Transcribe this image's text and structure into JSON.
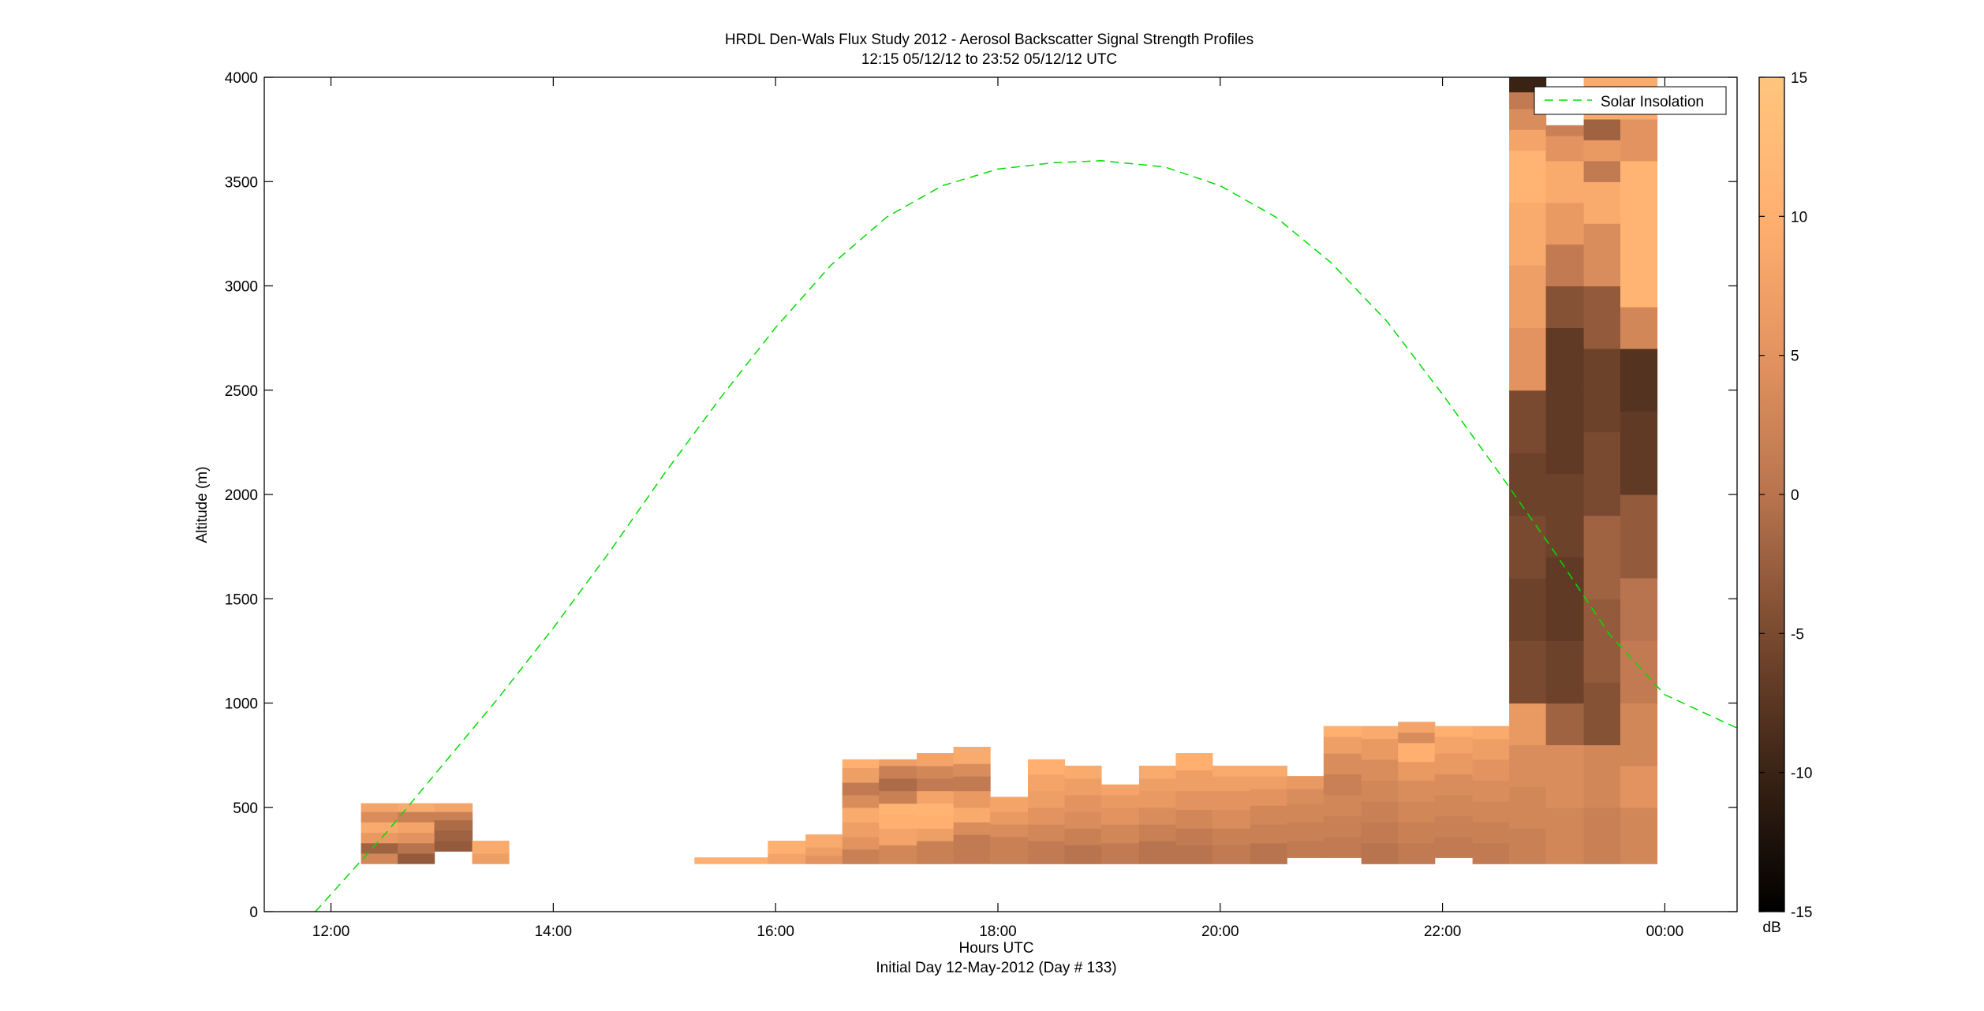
{
  "figure": {
    "title_line1": "HRDL Den-Wals Flux Study 2012 - Aerosol Backscatter Signal Strength Profiles",
    "title_line2": "12:15 05/12/12 to 23:52 05/12/12  UTC",
    "xlabel": "Hours UTC",
    "xlabel_line2": "Initial Day 12-May-2012 (Day # 133)",
    "ylabel": "Altitude (m)",
    "legend_entry": "Solar Insolation",
    "colorbar_unit": "dB"
  },
  "chart_data": {
    "type": "heatmap",
    "x_unit": "hours UTC (24.0 = 00:00 next day)",
    "xlim": [
      11.4,
      24.65
    ],
    "ylim": [
      0,
      4000
    ],
    "x_ticks": [
      12,
      14,
      16,
      18,
      20,
      22,
      24
    ],
    "x_tick_labels": [
      "12:00",
      "14:00",
      "16:00",
      "18:00",
      "20:00",
      "22:00",
      "00:00"
    ],
    "y_ticks": [
      0,
      500,
      1000,
      1500,
      2000,
      2500,
      3000,
      3500,
      4000
    ],
    "y_tick_labels": [
      "0",
      "500",
      "1000",
      "1500",
      "2000",
      "2500",
      "3000",
      "3500",
      "4000"
    ],
    "colorbar": {
      "clim": [
        -15,
        15
      ],
      "ticks": [
        -15,
        -10,
        -5,
        0,
        5,
        10,
        15
      ],
      "tick_labels": [
        "-15",
        "-10",
        "-5",
        "0",
        "5",
        "10",
        "15"
      ],
      "colormap": "copper-like",
      "color_stops": [
        "#000000",
        "#3a2315",
        "#7a4a30",
        "#b8744e",
        "#e3935f",
        "#ffb070",
        "#ffc57d"
      ]
    },
    "columns": [
      {
        "x0": 12.27,
        "x1": 12.6,
        "cells": [
          [
            230,
            280,
            3
          ],
          [
            280,
            330,
            -2
          ],
          [
            330,
            380,
            6
          ],
          [
            380,
            430,
            9
          ],
          [
            430,
            480,
            4
          ],
          [
            480,
            520,
            8
          ]
        ]
      },
      {
        "x0": 12.6,
        "x1": 12.93,
        "cells": [
          [
            230,
            280,
            -3
          ],
          [
            280,
            330,
            0
          ],
          [
            330,
            380,
            5
          ],
          [
            380,
            430,
            8
          ],
          [
            430,
            480,
            2
          ],
          [
            480,
            520,
            9
          ]
        ]
      },
      {
        "x0": 12.93,
        "x1": 13.27,
        "cells": [
          [
            290,
            340,
            -3
          ],
          [
            340,
            390,
            -2
          ],
          [
            390,
            440,
            -1
          ],
          [
            440,
            480,
            2
          ],
          [
            480,
            520,
            8
          ]
        ]
      },
      {
        "x0": 13.27,
        "x1": 13.6,
        "cells": [
          [
            230,
            280,
            7
          ],
          [
            280,
            340,
            9
          ]
        ]
      },
      {
        "x0": 15.27,
        "x1": 15.93,
        "cells": [
          [
            230,
            260,
            10
          ]
        ]
      },
      {
        "x0": 15.93,
        "x1": 16.27,
        "cells": [
          [
            230,
            280,
            8
          ],
          [
            280,
            340,
            10
          ]
        ]
      },
      {
        "x0": 16.27,
        "x1": 16.6,
        "cells": [
          [
            230,
            270,
            5
          ],
          [
            270,
            310,
            7
          ],
          [
            310,
            370,
            9
          ]
        ]
      },
      {
        "x0": 16.6,
        "x1": 16.93,
        "cells": [
          [
            230,
            300,
            2
          ],
          [
            300,
            360,
            5
          ],
          [
            360,
            430,
            7
          ],
          [
            430,
            500,
            9
          ],
          [
            500,
            560,
            4
          ],
          [
            560,
            620,
            1
          ],
          [
            620,
            690,
            7
          ],
          [
            690,
            730,
            10
          ]
        ]
      },
      {
        "x0": 16.93,
        "x1": 17.27,
        "cells": [
          [
            230,
            320,
            3
          ],
          [
            320,
            400,
            8
          ],
          [
            400,
            470,
            10
          ],
          [
            470,
            520,
            11
          ],
          [
            520,
            580,
            2
          ],
          [
            580,
            640,
            -1
          ],
          [
            640,
            700,
            2
          ],
          [
            700,
            730,
            7
          ]
        ]
      },
      {
        "x0": 17.27,
        "x1": 17.6,
        "cells": [
          [
            230,
            340,
            2
          ],
          [
            340,
            400,
            7
          ],
          [
            400,
            460,
            10
          ],
          [
            460,
            520,
            11
          ],
          [
            520,
            580,
            8
          ],
          [
            580,
            640,
            1
          ],
          [
            640,
            700,
            3
          ],
          [
            700,
            760,
            8
          ]
        ]
      },
      {
        "x0": 17.6,
        "x1": 17.93,
        "cells": [
          [
            230,
            370,
            1
          ],
          [
            370,
            430,
            4
          ],
          [
            430,
            500,
            9
          ],
          [
            500,
            580,
            6
          ],
          [
            580,
            650,
            1
          ],
          [
            650,
            710,
            4
          ],
          [
            710,
            790,
            9
          ]
        ]
      },
      {
        "x0": 17.93,
        "x1": 18.27,
        "cells": [
          [
            230,
            360,
            2
          ],
          [
            360,
            420,
            4
          ],
          [
            420,
            480,
            6
          ],
          [
            480,
            550,
            8
          ]
        ]
      },
      {
        "x0": 18.27,
        "x1": 18.6,
        "cells": [
          [
            230,
            340,
            1
          ],
          [
            340,
            420,
            3
          ],
          [
            420,
            500,
            5
          ],
          [
            500,
            580,
            7
          ],
          [
            580,
            660,
            8
          ],
          [
            660,
            730,
            10
          ]
        ]
      },
      {
        "x0": 18.6,
        "x1": 18.93,
        "cells": [
          [
            230,
            320,
            0
          ],
          [
            320,
            400,
            2
          ],
          [
            400,
            480,
            4
          ],
          [
            480,
            560,
            5
          ],
          [
            560,
            640,
            7
          ],
          [
            640,
            700,
            9
          ]
        ]
      },
      {
        "x0": 18.93,
        "x1": 19.27,
        "cells": [
          [
            230,
            330,
            1
          ],
          [
            330,
            420,
            3
          ],
          [
            420,
            500,
            5
          ],
          [
            500,
            560,
            6
          ],
          [
            560,
            610,
            8
          ]
        ]
      },
      {
        "x0": 19.27,
        "x1": 19.6,
        "cells": [
          [
            230,
            340,
            0
          ],
          [
            340,
            420,
            2
          ],
          [
            420,
            500,
            4
          ],
          [
            500,
            580,
            6
          ],
          [
            580,
            640,
            7
          ],
          [
            640,
            700,
            9
          ]
        ]
      },
      {
        "x0": 19.6,
        "x1": 19.93,
        "cells": [
          [
            230,
            320,
            0
          ],
          [
            320,
            400,
            1
          ],
          [
            400,
            490,
            3
          ],
          [
            490,
            580,
            5
          ],
          [
            580,
            680,
            7
          ],
          [
            680,
            760,
            10
          ]
        ]
      },
      {
        "x0": 19.93,
        "x1": 20.27,
        "cells": [
          [
            230,
            320,
            1
          ],
          [
            320,
            400,
            2
          ],
          [
            400,
            490,
            4
          ],
          [
            490,
            580,
            5
          ],
          [
            580,
            650,
            7
          ],
          [
            650,
            700,
            9
          ]
        ]
      },
      {
        "x0": 20.27,
        "x1": 20.6,
        "cells": [
          [
            230,
            330,
            0
          ],
          [
            330,
            420,
            2
          ],
          [
            420,
            510,
            3
          ],
          [
            510,
            590,
            5
          ],
          [
            590,
            650,
            7
          ],
          [
            650,
            700,
            9
          ]
        ]
      },
      {
        "x0": 20.6,
        "x1": 20.93,
        "cells": [
          [
            260,
            340,
            1
          ],
          [
            340,
            430,
            2
          ],
          [
            430,
            520,
            3
          ],
          [
            520,
            590,
            4
          ],
          [
            590,
            650,
            6
          ]
        ]
      },
      {
        "x0": 20.93,
        "x1": 21.27,
        "cells": [
          [
            260,
            360,
            1
          ],
          [
            360,
            460,
            2
          ],
          [
            460,
            560,
            3
          ],
          [
            560,
            660,
            2
          ],
          [
            660,
            760,
            4
          ],
          [
            760,
            840,
            7
          ],
          [
            840,
            890,
            10
          ]
        ]
      },
      {
        "x0": 21.27,
        "x1": 21.6,
        "cells": [
          [
            230,
            330,
            0
          ],
          [
            330,
            430,
            1
          ],
          [
            430,
            530,
            2
          ],
          [
            530,
            630,
            3
          ],
          [
            630,
            730,
            4
          ],
          [
            730,
            830,
            6
          ],
          [
            830,
            890,
            9
          ]
        ]
      },
      {
        "x0": 21.6,
        "x1": 21.93,
        "cells": [
          [
            230,
            330,
            1
          ],
          [
            330,
            430,
            2
          ],
          [
            430,
            530,
            3
          ],
          [
            530,
            630,
            4
          ],
          [
            630,
            720,
            6
          ],
          [
            720,
            810,
            10
          ],
          [
            810,
            860,
            4
          ],
          [
            860,
            910,
            8
          ]
        ]
      },
      {
        "x0": 21.93,
        "x1": 22.27,
        "cells": [
          [
            260,
            360,
            1
          ],
          [
            360,
            460,
            2
          ],
          [
            460,
            560,
            3
          ],
          [
            560,
            660,
            4
          ],
          [
            660,
            760,
            6
          ],
          [
            760,
            840,
            8
          ],
          [
            840,
            890,
            10
          ]
        ]
      },
      {
        "x0": 22.27,
        "x1": 22.6,
        "cells": [
          [
            230,
            330,
            1
          ],
          [
            330,
            430,
            2
          ],
          [
            430,
            530,
            3
          ],
          [
            530,
            630,
            4
          ],
          [
            630,
            730,
            5
          ],
          [
            730,
            830,
            7
          ],
          [
            830,
            890,
            9
          ]
        ]
      },
      {
        "x0": 22.6,
        "x1": 22.93,
        "cells": [
          [
            230,
            400,
            2
          ],
          [
            400,
            600,
            3
          ],
          [
            600,
            800,
            4
          ],
          [
            800,
            1000,
            6
          ],
          [
            1000,
            1300,
            -5
          ],
          [
            1300,
            1600,
            -6
          ],
          [
            1600,
            1900,
            -5
          ],
          [
            1900,
            2200,
            -6
          ],
          [
            2200,
            2500,
            -5
          ],
          [
            2500,
            2800,
            5
          ],
          [
            2800,
            3100,
            7
          ],
          [
            3100,
            3400,
            9
          ],
          [
            3400,
            3650,
            11
          ],
          [
            3650,
            3750,
            8
          ],
          [
            3750,
            3850,
            4
          ],
          [
            3850,
            3930,
            1
          ],
          [
            3930,
            4000,
            -10
          ]
        ]
      },
      {
        "x0": 22.93,
        "x1": 23.27,
        "cells": [
          [
            230,
            500,
            3
          ],
          [
            500,
            800,
            4
          ],
          [
            800,
            1000,
            -2
          ],
          [
            1000,
            1300,
            -6
          ],
          [
            1300,
            1700,
            -7
          ],
          [
            1700,
            2100,
            -6
          ],
          [
            2100,
            2500,
            -7
          ],
          [
            2500,
            2800,
            -7
          ],
          [
            2800,
            3000,
            -4
          ],
          [
            3000,
            3200,
            1
          ],
          [
            3200,
            3400,
            6
          ],
          [
            3400,
            3600,
            9
          ],
          [
            3600,
            3720,
            5
          ],
          [
            3720,
            3770,
            2
          ]
        ]
      },
      {
        "x0": 23.27,
        "x1": 23.6,
        "cells": [
          [
            230,
            500,
            2
          ],
          [
            500,
            800,
            3
          ],
          [
            800,
            1100,
            -4
          ],
          [
            1100,
            1500,
            -3
          ],
          [
            1500,
            1900,
            -2
          ],
          [
            1900,
            2300,
            -5
          ],
          [
            2300,
            2700,
            -6
          ],
          [
            2700,
            3000,
            -3
          ],
          [
            3000,
            3300,
            4
          ],
          [
            3300,
            3500,
            9
          ],
          [
            3500,
            3600,
            1
          ],
          [
            3600,
            3700,
            6
          ],
          [
            3700,
            3800,
            -2
          ],
          [
            3800,
            4000,
            9
          ]
        ]
      },
      {
        "x0": 23.6,
        "x1": 23.93,
        "cells": [
          [
            230,
            500,
            3
          ],
          [
            500,
            700,
            5
          ],
          [
            700,
            1000,
            3
          ],
          [
            1000,
            1300,
            1
          ],
          [
            1300,
            1600,
            0
          ],
          [
            1600,
            2000,
            -3
          ],
          [
            2000,
            2400,
            -7
          ],
          [
            2400,
            2700,
            -8
          ],
          [
            2700,
            2900,
            3
          ],
          [
            2900,
            3600,
            11
          ],
          [
            3600,
            3800,
            5
          ],
          [
            3800,
            4000,
            9
          ]
        ]
      }
    ],
    "solar_line": {
      "style": "dashed",
      "color": "#00dd00",
      "x": [
        11.86,
        12.5,
        13.0,
        13.5,
        14.0,
        14.5,
        15.0,
        15.5,
        16.0,
        16.5,
        17.0,
        17.5,
        18.0,
        18.5,
        18.93,
        19.5,
        20.0,
        20.5,
        21.0,
        21.5,
        22.0,
        22.5,
        23.0,
        23.5,
        24.0,
        24.65
      ],
      "y": [
        0,
        380,
        700,
        1020,
        1360,
        1720,
        2100,
        2460,
        2800,
        3100,
        3330,
        3480,
        3560,
        3590,
        3600,
        3570,
        3480,
        3330,
        3110,
        2830,
        2480,
        2110,
        1730,
        1330,
        1040,
        880
      ]
    }
  }
}
